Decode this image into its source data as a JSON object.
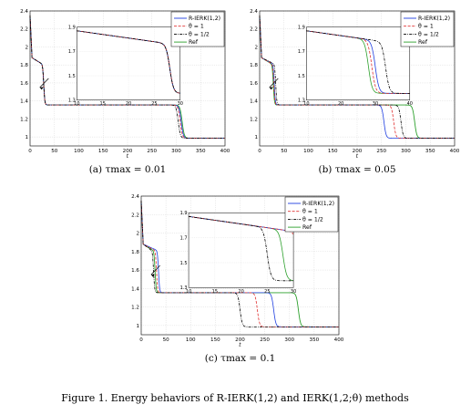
{
  "figure_caption": "Figure 1. Energy behaviors of R-IERK(1,2) and IERK(1,2;θ) methods",
  "colors": {
    "R-IERK(1,2)": "#1f3fe0",
    "θ = 1": "#e03030",
    "θ = 1/2": "#000000",
    "Ref": "#2ca02c"
  },
  "chart_data": [
    {
      "type": "line",
      "caption": "(a) τmax = 0.01",
      "xlabel": "t",
      "xlim": [
        0,
        400
      ],
      "ylim": [
        0.9,
        2.4
      ],
      "xticks": [
        0,
        50,
        100,
        150,
        200,
        250,
        300,
        350,
        400
      ],
      "yticks": [
        1,
        1.2,
        1.4,
        1.6,
        1.8,
        2,
        2.2,
        2.4
      ],
      "grid": true,
      "legend_placement": "top-right",
      "series": [
        {
          "name": "R-IERK(1,2)",
          "style": "solid",
          "second_drop": 310,
          "first_drop": 28
        },
        {
          "name": "θ = 1",
          "style": "dashed",
          "second_drop": 308,
          "first_drop": 28
        },
        {
          "name": "θ = 1/2",
          "style": "dashdot",
          "second_drop": 304,
          "first_drop": 28
        },
        {
          "name": "Ref",
          "style": "solid-light",
          "second_drop": 312,
          "first_drop": 28
        }
      ],
      "inset": {
        "xlim": [
          10,
          30
        ],
        "ylim": [
          1.3,
          1.9
        ],
        "xticks": [
          10,
          15,
          20,
          25,
          30
        ],
        "yticks": [
          1.3,
          1.5,
          1.7,
          1.9
        ]
      }
    },
    {
      "type": "line",
      "caption": "(b) τmax = 0.05",
      "xlabel": "t",
      "xlim": [
        0,
        400
      ],
      "ylim": [
        0.9,
        2.4
      ],
      "xticks": [
        0,
        50,
        100,
        150,
        200,
        250,
        300,
        350,
        400
      ],
      "yticks": [
        1,
        1.2,
        1.4,
        1.6,
        1.8,
        2,
        2.2,
        2.4
      ],
      "grid": true,
      "legend_placement": "top-right",
      "series": [
        {
          "name": "R-IERK(1,2)",
          "style": "solid",
          "second_drop": 255,
          "first_drop": 30
        },
        {
          "name": "θ = 1",
          "style": "dashed",
          "second_drop": 275,
          "first_drop": 29
        },
        {
          "name": "θ = 1/2",
          "style": "dashdot",
          "second_drop": 290,
          "first_drop": 33
        },
        {
          "name": "Ref",
          "style": "solid-light",
          "second_drop": 318,
          "first_drop": 28
        }
      ],
      "inset": {
        "xlim": [
          10,
          40
        ],
        "ylim": [
          1.3,
          1.9
        ],
        "xticks": [
          10,
          20,
          30,
          40
        ],
        "yticks": [
          1.3,
          1.5,
          1.7,
          1.9
        ]
      }
    },
    {
      "type": "line",
      "caption": "(c) τmax = 0.1",
      "xlabel": "t",
      "xlim": [
        0,
        400
      ],
      "ylim": [
        0.9,
        2.4
      ],
      "xticks": [
        0,
        50,
        100,
        150,
        200,
        250,
        300,
        350,
        400
      ],
      "yticks": [
        1,
        1.2,
        1.4,
        1.6,
        1.8,
        2,
        2.2,
        2.4
      ],
      "grid": true,
      "legend_placement": "top-right",
      "series": [
        {
          "name": "R-IERK(1,2)",
          "style": "solid",
          "second_drop": 268,
          "first_drop": 35
        },
        {
          "name": "θ = 1",
          "style": "dashed",
          "second_drop": 235,
          "first_drop": 31
        },
        {
          "name": "θ = 1/2",
          "style": "dashdot",
          "second_drop": 200,
          "first_drop": 25
        },
        {
          "name": "Ref",
          "style": "solid-light",
          "second_drop": 318,
          "first_drop": 28
        }
      ],
      "inset": {
        "xlim": [
          10,
          30
        ],
        "ylim": [
          1.3,
          1.9
        ],
        "xticks": [
          10,
          15,
          20,
          25,
          30
        ],
        "yticks": [
          1.3,
          1.5,
          1.7,
          1.9
        ]
      }
    }
  ]
}
